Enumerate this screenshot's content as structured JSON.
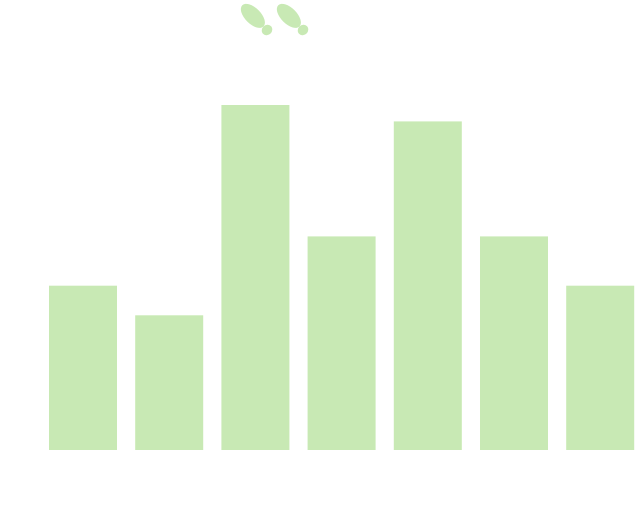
{
  "chart_data": {
    "type": "bar",
    "categories": [
      "",
      "",
      "",
      "",
      "",
      "",
      ""
    ],
    "values": [
      5,
      4.1,
      10.5,
      6.5,
      10,
      6.5,
      5
    ],
    "ylim": [
      0,
      10.5
    ],
    "grid": false,
    "legend": "none",
    "bar_color": "#c8e9b4"
  },
  "header": {
    "icon": "footprints-icon",
    "icon_color": "#c8e9b4"
  }
}
